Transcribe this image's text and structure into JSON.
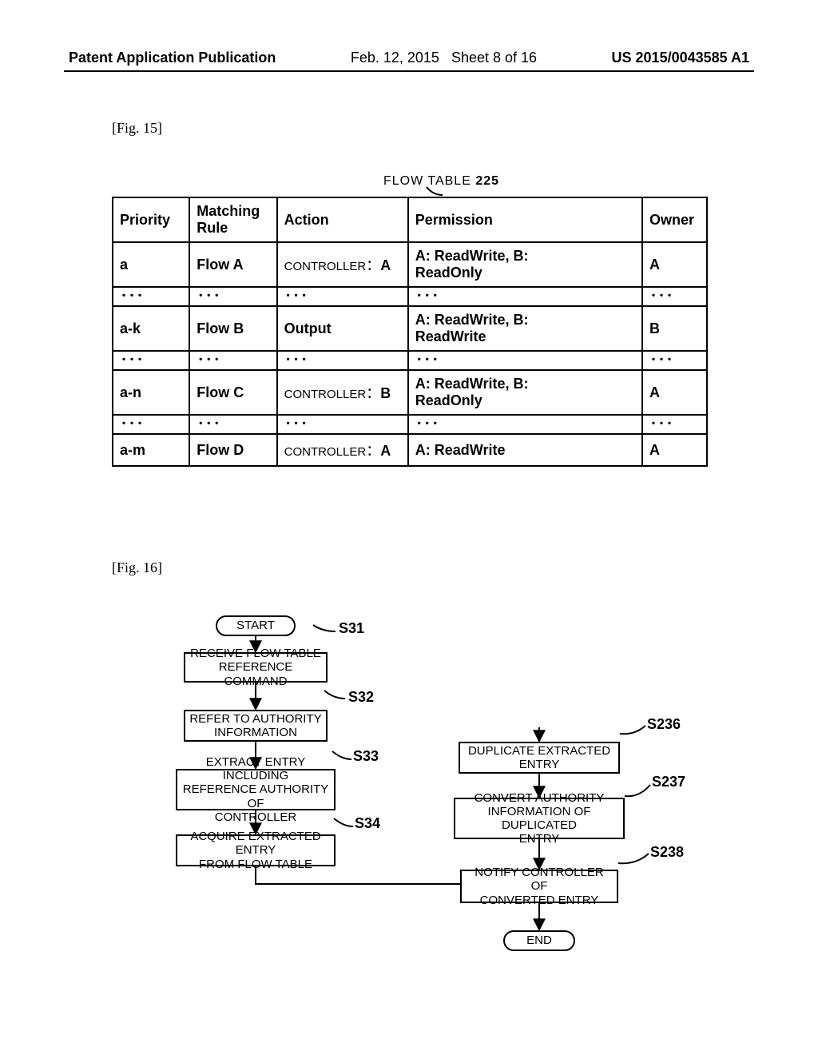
{
  "header": {
    "left": "Patent Application Publication",
    "mid_date": "Feb. 12, 2015",
    "mid_sheet": "Sheet 8 of 16",
    "right": "US 2015/0043585 A1"
  },
  "fig15": {
    "caption": "[Fig. 15]",
    "title_prefix": "FLOW TABLE",
    "title_ref": "225",
    "columns": [
      "Priority",
      "Matching Rule",
      "Action",
      "Permission",
      "Owner"
    ],
    "rows": [
      {
        "priority": "a",
        "rule": "Flow A",
        "action": "CONTROLLER：A",
        "permission": "A: ReadWrite, B: ReadOnly",
        "owner": "A"
      },
      {
        "priority": "･･･",
        "rule": "･･･",
        "action": "･･･",
        "permission": "･･･",
        "owner": "･･･",
        "dots": true
      },
      {
        "priority": "a-k",
        "rule": "Flow B",
        "action": "Output",
        "permission": "A: ReadWrite, B: ReadWrite",
        "owner": "B"
      },
      {
        "priority": "･･･",
        "rule": "･･･",
        "action": "･･･",
        "permission": "･･･",
        "owner": "･･･",
        "dots": true
      },
      {
        "priority": "a-n",
        "rule": "Flow C",
        "action": "CONTROLLER：B",
        "permission": "A: ReadWrite, B: ReadOnly",
        "owner": "A"
      },
      {
        "priority": "･･･",
        "rule": "･･･",
        "action": "･･･",
        "permission": "･･･",
        "owner": "･･･",
        "dots": true
      },
      {
        "priority": "a-m",
        "rule": "Flow D",
        "action": "CONTROLLER：A",
        "permission": "A: ReadWrite",
        "owner": "A"
      }
    ]
  },
  "fig16": {
    "caption": "[Fig. 16]",
    "start": "START",
    "end": "END",
    "boxes": {
      "s31": {
        "label": "S31",
        "text": "RECEIVE FLOW TABLE\nREFERENCE COMMAND"
      },
      "s32": {
        "label": "S32",
        "text": "REFER TO AUTHORITY\nINFORMATION"
      },
      "s33": {
        "label": "S33",
        "text": "EXTRACT ENTRY INCLUDING\nREFERENCE AUTHORITY OF\nCONTROLLER"
      },
      "s34": {
        "label": "S34",
        "text": "ACQUIRE EXTRACTED ENTRY\nFROM FLOW TABLE"
      },
      "s236": {
        "label": "S236",
        "text": "DUPLICATE EXTRACTED\nENTRY"
      },
      "s237": {
        "label": "S237",
        "text": "CONVERT AUTHORITY\nINFORMATION OF DUPLICATED\nENTRY"
      },
      "s238": {
        "label": "S238",
        "text": "NOTIFY CONTROLLER OF\nCONVERTED ENTRY"
      }
    }
  }
}
